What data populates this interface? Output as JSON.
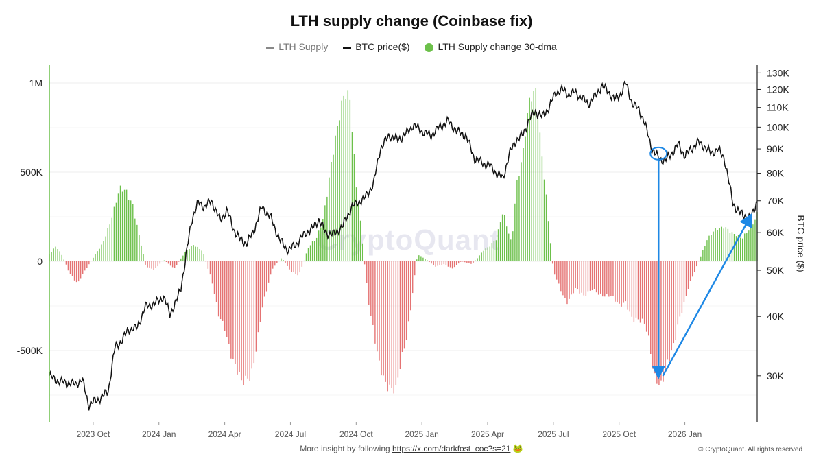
{
  "title": "LTH supply change (Coinbase fix)",
  "legend": [
    {
      "label": "LTH Supply",
      "type": "line",
      "color": "#888888",
      "strike": true
    },
    {
      "label": "BTC price($)",
      "type": "line",
      "color": "#111111",
      "strike": false
    },
    {
      "label": "LTH Supply change 30-dma",
      "type": "dot",
      "color": "#6cc04a",
      "strike": false
    }
  ],
  "watermark": "CryptoQuant",
  "footer": {
    "text": "More insight by following ",
    "link": "https://x.com/darkfost_coc?s=21",
    "emoji": "🐸"
  },
  "copyright": "© CryptoQuant. All rights reserved",
  "colors": {
    "positive": "#6cc04a",
    "negative": "#e57373",
    "price": "#111111",
    "annotation": "#1e88e5"
  },
  "chart_data": {
    "type": "bar",
    "title": "LTH supply change (Coinbase fix)",
    "left_axis": {
      "label": "",
      "ticks": [
        1000000,
        500000,
        0,
        -500000
      ],
      "tick_labels": [
        "1M",
        "500K",
        "0",
        "-500K"
      ],
      "range": [
        -900000,
        1100000
      ]
    },
    "right_axis": {
      "label": "BTC price ($)",
      "scale": "log",
      "ticks": [
        30000,
        40000,
        50000,
        60000,
        70000,
        80000,
        90000,
        100000,
        110000,
        120000,
        130000
      ],
      "tick_labels": [
        "30K",
        "40K",
        "50K",
        "60K",
        "70K",
        "80K",
        "90K",
        "100K",
        "110K",
        "120K",
        "130K"
      ],
      "range": [
        24000,
        135000
      ]
    },
    "x_axis": {
      "tick_labels": [
        "2023 Oct",
        "2024 Jan",
        "2024 Apr",
        "2024 Jul",
        "2024 Oct",
        "2025 Jan",
        "2025 Apr",
        "2025 Jul",
        "2025 Oct",
        "2026 Jan"
      ],
      "tick_months": [
        3,
        6,
        9,
        12,
        15,
        18,
        21,
        24,
        27,
        30
      ],
      "range_months": [
        1.0,
        33.3
      ]
    },
    "series": [
      {
        "name": "LTH Supply change 30-dma",
        "type": "bar",
        "keyframes_month": [
          1.0,
          1.3,
          1.6,
          1.9,
          2.3,
          2.8,
          3.4,
          3.9,
          4.2,
          4.5,
          4.8,
          5.1,
          5.4,
          5.8,
          6.2,
          6.7,
          7.2,
          7.6,
          8.0,
          8.4,
          8.7,
          9.0,
          9.4,
          9.8,
          10.2,
          10.7,
          11.2,
          11.6,
          12.0,
          12.4,
          12.8,
          13.2,
          13.5,
          13.8,
          14.0,
          14.2,
          14.4,
          14.7,
          15.0,
          15.3,
          15.6,
          16.0,
          16.4,
          16.8,
          17.3,
          17.8,
          18.2,
          18.6,
          19.0,
          19.4,
          19.8,
          20.3,
          20.8,
          21.1,
          21.4,
          21.7,
          21.9,
          22.1,
          22.3,
          22.6,
          22.9,
          23.2,
          23.4,
          23.6,
          23.8,
          24.0,
          24.3,
          24.6,
          25.0,
          25.4,
          25.8,
          26.2,
          26.6,
          27.0,
          27.3,
          27.6,
          27.9,
          28.2,
          28.4,
          28.6,
          28.9,
          29.2,
          29.5,
          29.8,
          30.2,
          30.6,
          31.0,
          31.4,
          31.8,
          32.2,
          32.6,
          33.0,
          33.3
        ],
        "keyframes_value": [
          40000,
          80000,
          30000,
          -60000,
          -120000,
          -20000,
          100000,
          260000,
          380000,
          390000,
          340000,
          150000,
          -30000,
          -50000,
          10000,
          -40000,
          50000,
          100000,
          60000,
          -110000,
          -300000,
          -350000,
          -550000,
          -720000,
          -650000,
          -250000,
          -40000,
          20000,
          -50000,
          -80000,
          70000,
          140000,
          260000,
          480000,
          620000,
          750000,
          920000,
          980000,
          450000,
          90000,
          -280000,
          -520000,
          -680000,
          -760000,
          -420000,
          40000,
          10000,
          -30000,
          -15000,
          -40000,
          0,
          -15000,
          60000,
          80000,
          120000,
          300000,
          200000,
          100000,
          400000,
          550000,
          900000,
          1000000,
          720000,
          460000,
          180000,
          -60000,
          -150000,
          -220000,
          -150000,
          -210000,
          -150000,
          -180000,
          -200000,
          -260000,
          -220000,
          -300000,
          -330000,
          -380000,
          -500000,
          -640000,
          -660000,
          -560000,
          -500000,
          -320000,
          -120000,
          -10000,
          110000,
          180000,
          210000,
          150000,
          120000,
          200000,
          280000
        ]
      },
      {
        "name": "BTC price($)",
        "type": "line",
        "keyframes_month": [
          1.0,
          1.4,
          1.8,
          2.2,
          2.5,
          2.8,
          3.1,
          3.4,
          3.7,
          4.0,
          4.3,
          4.6,
          5.0,
          5.4,
          5.8,
          6.2,
          6.5,
          6.8,
          7.0,
          7.2,
          7.5,
          7.8,
          8.1,
          8.4,
          8.8,
          9.1,
          9.4,
          9.7,
          10.0,
          10.3,
          10.7,
          11.1,
          11.5,
          11.9,
          12.3,
          12.7,
          13.0,
          13.3,
          13.6,
          14.0,
          14.4,
          14.8,
          15.1,
          15.4,
          15.8,
          16.1,
          16.5,
          16.9,
          17.3,
          17.6,
          18.0,
          18.4,
          18.8,
          19.2,
          19.6,
          20.0,
          20.4,
          20.8,
          21.1,
          21.4,
          21.7,
          22.0,
          22.3,
          22.6,
          22.9,
          23.2,
          23.5,
          23.8,
          24.1,
          24.4,
          24.7,
          25.0,
          25.3,
          25.6,
          25.9,
          26.2,
          26.5,
          26.8,
          27.1,
          27.3,
          27.6,
          27.9,
          28.1,
          28.3,
          28.5,
          28.8,
          29.1,
          29.4,
          29.7,
          30.0,
          30.3,
          30.6,
          30.9,
          31.2,
          31.5,
          31.8,
          32.0,
          32.2,
          32.5,
          32.8,
          33.0,
          33.3
        ],
        "keyframes_value": [
          30000,
          29200,
          29000,
          28800,
          29400,
          26000,
          26600,
          27000,
          28000,
          34500,
          35500,
          37500,
          37800,
          42000,
          42500,
          44000,
          40500,
          43000,
          46000,
          52000,
          64000,
          69500,
          68000,
          70000,
          63500,
          67000,
          61000,
          58000,
          57000,
          60000,
          68000,
          64500,
          58000,
          55000,
          57000,
          60000,
          61000,
          64000,
          60000,
          59500,
          62000,
          68000,
          69500,
          71000,
          76000,
          90000,
          96000,
          94000,
          97000,
          101000,
          98000,
          96000,
          100000,
          103000,
          98000,
          96000,
          86000,
          84000,
          83000,
          80000,
          78000,
          88000,
          94000,
          96000,
          104000,
          108000,
          105000,
          110000,
          118000,
          120000,
          117000,
          118500,
          115000,
          112000,
          116000,
          122000,
          119000,
          114000,
          118000,
          124000,
          112000,
          109000,
          104000,
          97000,
          90000,
          86000,
          85000,
          88000,
          92000,
          87000,
          90000,
          93000,
          91000,
          88000,
          90000,
          86000,
          77000,
          69000,
          66000,
          65000,
          64000,
          70000
        ]
      }
    ],
    "annotations": [
      {
        "type": "ellipse",
        "x_month": 28.8,
        "price": 88000
      },
      {
        "type": "arrow",
        "from_month": 28.8,
        "from_price": 86000,
        "to_month": 28.8,
        "to_price": 30000
      },
      {
        "type": "arrow",
        "from_month": 29.0,
        "from_price": 30000,
        "to_month": 33.0,
        "to_price": 65000
      }
    ]
  }
}
